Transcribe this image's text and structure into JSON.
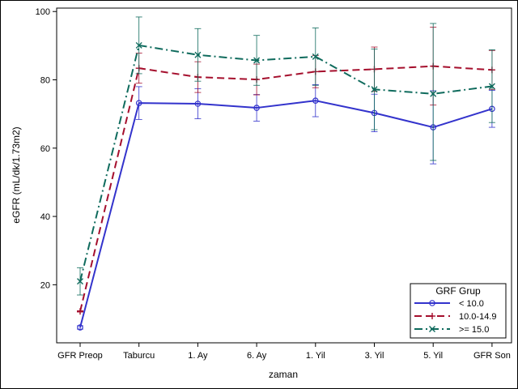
{
  "chart_data": {
    "type": "line",
    "xlabel": "zaman",
    "ylabel": "eGFR (mL/dk/1.73m2)",
    "categories": [
      "GFR Preop",
      "Taburcu",
      "1. Ay",
      "6. Ay",
      "1. Yil",
      "3. Yil",
      "5. Yil",
      "GFR Son"
    ],
    "ylim": [
      3,
      101
    ],
    "yticks": [
      20,
      40,
      60,
      80,
      100
    ],
    "grid": false,
    "legend": {
      "title": "GRF Grup",
      "placement": "bottom-right",
      "entries": [
        "< 10.0",
        "10.0-14.9",
        ">= 15.0"
      ]
    },
    "series": [
      {
        "name": "< 10.0",
        "color": "#3333cc",
        "marker": "circle",
        "dash": "solid",
        "values": [
          7.5,
          73.2,
          73.0,
          71.8,
          73.9,
          70.3,
          66.1,
          71.5
        ],
        "err_low": [
          7.0,
          68.4,
          68.6,
          67.9,
          69.2,
          64.8,
          55.4,
          66.1
        ],
        "err_high": [
          8.0,
          78.0,
          77.4,
          75.7,
          78.6,
          75.8,
          76.8,
          76.9
        ]
      },
      {
        "name": "10.0-14.9",
        "color": "#a50f2d",
        "marker": "plus",
        "dash": "dash",
        "values": [
          12.2,
          83.4,
          80.8,
          80.1,
          82.4,
          83.1,
          84.0,
          82.9
        ],
        "err_low": [
          12.0,
          79.0,
          76.3,
          75.6,
          77.7,
          76.6,
          72.6,
          77.2
        ],
        "err_high": [
          12.4,
          87.8,
          85.3,
          84.6,
          87.1,
          89.6,
          95.4,
          88.6
        ]
      },
      {
        "name": ">= 15.0",
        "color": "#0f6b5d",
        "marker": "x",
        "dash": "dashdot",
        "values": [
          21.0,
          90.1,
          87.3,
          85.7,
          86.8,
          77.2,
          75.9,
          78.1
        ],
        "err_low": [
          17.0,
          81.8,
          79.6,
          78.4,
          78.4,
          65.4,
          56.4,
          67.5
        ],
        "err_high": [
          25.0,
          98.4,
          95.0,
          93.0,
          95.2,
          89.0,
          96.5,
          88.8
        ]
      }
    ]
  }
}
